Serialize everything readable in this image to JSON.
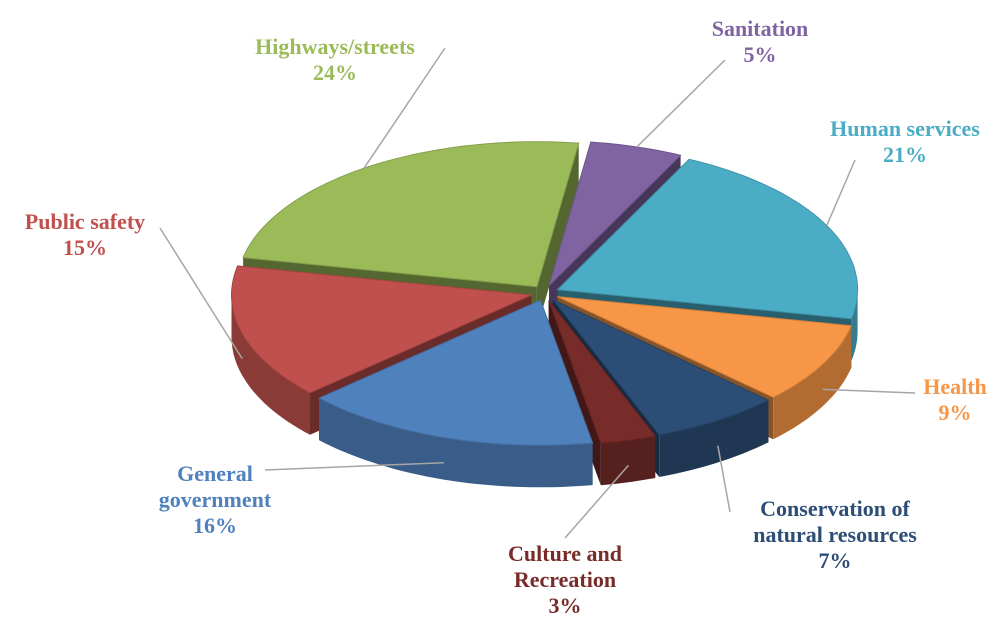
{
  "chart_data": {
    "type": "pie",
    "categories": [
      "Highways/streets",
      "Sanitation",
      "Human services",
      "Health",
      "Conservation of natural resources",
      "Culture and Recreation",
      "General government",
      "Public safety"
    ],
    "values": [
      24,
      5,
      21,
      9,
      7,
      3,
      16,
      15
    ],
    "value_labels": [
      "24%",
      "5%",
      "21%",
      "9%",
      "7%",
      "3%",
      "16%",
      "15%"
    ],
    "colors": [
      "#9bbb59",
      "#8064a2",
      "#4bacc6",
      "#f79646",
      "#2c4d75",
      "#772c2a",
      "#4f81bd",
      "#c0504d"
    ]
  }
}
